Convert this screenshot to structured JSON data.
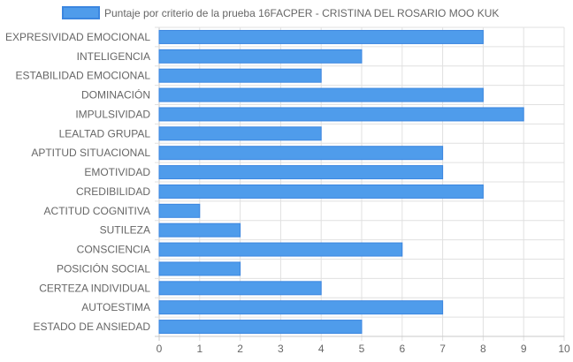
{
  "chart_data": {
    "type": "bar",
    "orientation": "horizontal",
    "title": "",
    "xlabel": "",
    "ylabel": "",
    "xlim": [
      0,
      10
    ],
    "x_ticks": [
      "0",
      "1",
      "2",
      "3",
      "4",
      "5",
      "6",
      "7",
      "8",
      "9",
      "10"
    ],
    "grid": true,
    "legend_position": "top",
    "categories": [
      "EXPRESIVIDAD EMOCIONAL",
      "INTELIGENCIA",
      "ESTABILIDAD EMOCIONAL",
      "DOMINACIÓN",
      "IMPULSIVIDAD",
      "LEALTAD GRUPAL",
      "APTITUD SITUACIONAL",
      "EMOTIVIDAD",
      "CREDIBILIDAD",
      "ACTITUD COGNITIVA",
      "SUTILEZA",
      "CONSCIENCIA",
      "POSICIÓN SOCIAL",
      "CERTEZA INDIVIDUAL",
      "AUTOESTIMA",
      "ESTADO DE ANSIEDAD"
    ],
    "series": [
      {
        "name": "Puntaje por criterio de la prueba 16FACPER - CRISTINA DEL ROSARIO MOO KUK",
        "values": [
          8,
          5,
          4,
          8,
          9,
          4,
          7,
          7,
          8,
          1,
          2,
          6,
          2,
          4,
          7,
          5
        ],
        "color": "#4f9ceb",
        "border_color": "#3b86e0"
      }
    ],
    "colors": {
      "grid": "#e0e0e0",
      "axis": "#c8c8c8",
      "text": "#666666"
    }
  }
}
